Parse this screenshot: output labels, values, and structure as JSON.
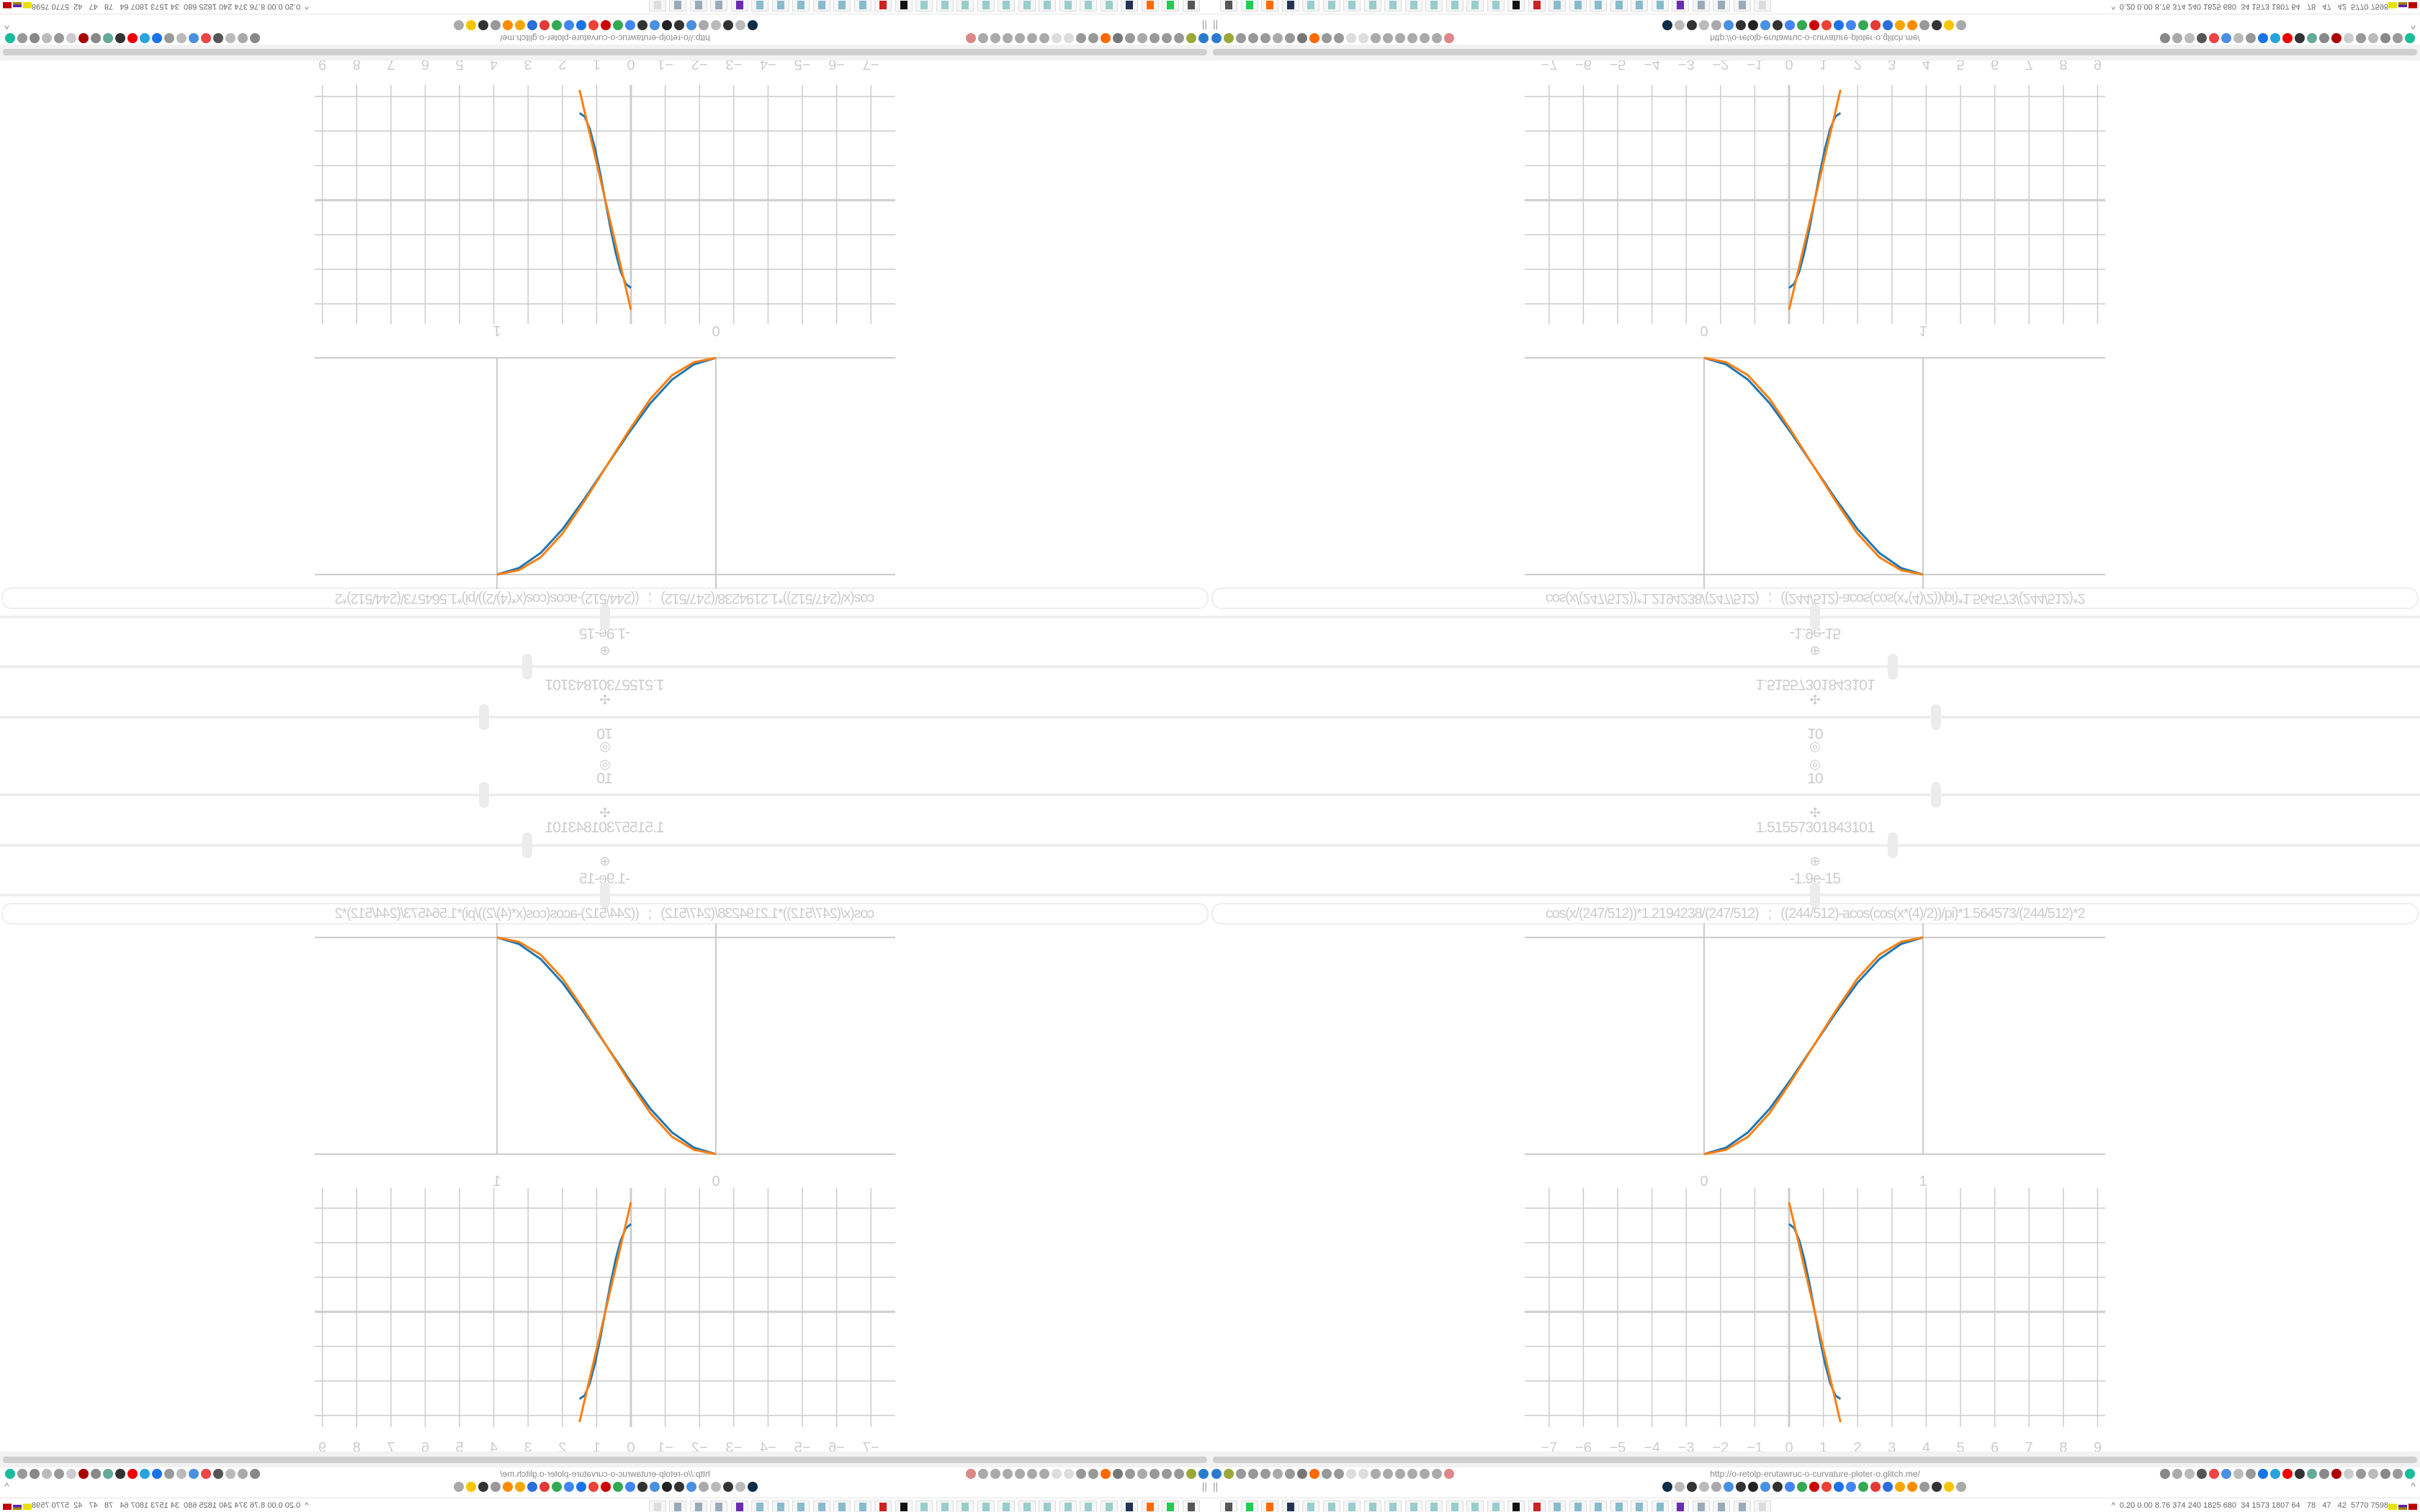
{
  "sliders": [
    {
      "icon": "target-icon",
      "glyph": "◎",
      "value": "10",
      "level": 0.6
    },
    {
      "icon": "move-icon",
      "glyph": "✣",
      "value": "1.51557301843101",
      "level": 0.564
    },
    {
      "icon": "rotate-icon",
      "glyph": "⊕",
      "value": "-1.9e-15",
      "level": 0.5
    }
  ],
  "formula": "cos(x/(247/512))*1.2194238/(247/512)   ;   ((244/512)-acos(cos(x*(4)/2))/pi)*1.564573/(244/512)*2",
  "colors": {
    "series_a": "#1f77b4",
    "series_b": "#ff7f0e",
    "grid": "#cccccc",
    "text": "#cccccc"
  },
  "chart_data": [
    {
      "type": "line",
      "xlim": [
        0,
        1
      ],
      "ylim": [
        0,
        1
      ],
      "tick_labels": [
        "0",
        "1"
      ],
      "grid": true,
      "series": [
        {
          "color": "#1f77b4",
          "x": [
            0,
            0.1,
            0.2,
            0.3,
            0.4,
            0.5,
            0.6,
            0.7,
            0.8,
            0.9,
            1
          ],
          "y": [
            0,
            0.03,
            0.1,
            0.21,
            0.35,
            0.5,
            0.65,
            0.79,
            0.9,
            0.97,
            1
          ]
        },
        {
          "color": "#ff7f0e",
          "x": [
            0,
            0.1,
            0.2,
            0.3,
            0.4,
            0.5,
            0.6,
            0.7,
            0.8,
            0.9,
            1
          ],
          "y": [
            0,
            0.02,
            0.08,
            0.19,
            0.34,
            0.5,
            0.66,
            0.81,
            0.92,
            0.98,
            1
          ]
        }
      ]
    },
    {
      "type": "line",
      "xlim": [
        -7,
        9
      ],
      "ylim": [
        -3,
        3
      ],
      "tick_labels": [
        "−7",
        "−6",
        "−5",
        "−4",
        "−3",
        "−2",
        "−1",
        "0",
        "1",
        "2",
        "3",
        "4",
        "5",
        "6",
        "7",
        "8",
        "9"
      ],
      "grid": true,
      "series": [
        {
          "color": "#1f77b4",
          "x": [
            0,
            0.15,
            0.3,
            0.45,
            0.6,
            0.75,
            0.9,
            1.05,
            1.2,
            1.35,
            1.5
          ],
          "y": [
            2.54,
            2.42,
            2.06,
            1.5,
            0.79,
            0,
            -0.79,
            -1.5,
            -2.06,
            -2.42,
            -2.52
          ]
        },
        {
          "color": "#ff7f0e",
          "x": [
            0,
            1.5
          ],
          "y": [
            3.17,
            -3.19
          ]
        }
      ]
    }
  ],
  "browser": {
    "url": "http://o-retolp-erutawruc-o-curvature-ploter-o.glitch.me/",
    "toolbar_left": [
      "#2a7bd0",
      "#9aa83a",
      "#999",
      "#999",
      "#999",
      "#aaa",
      "#999",
      "#777",
      "#ff6a00",
      "#999",
      "#999",
      "#ddd",
      "#ddd",
      "#aaa",
      "#aaa",
      "#aaa",
      "#aaa",
      "#aaa",
      "#aaa",
      "#d88"
    ],
    "toolbar_right": [
      "#888",
      "#aaa",
      "#bbb",
      "#555",
      "#e44",
      "#4a90e2",
      "#bbb",
      "#999",
      "#1a73e8",
      "#29a3e0",
      "#e00",
      "#333",
      "#6a9",
      "#888",
      "#a00",
      "#ccc",
      "#999",
      "#bbb",
      "#888",
      "#999",
      "#1abc9c"
    ],
    "bookmarks": [
      "#0c2d48",
      "#bbb",
      "#333",
      "#bbb",
      "#aaa",
      "#4a90e2",
      "#333",
      "#222",
      "#4a90e2",
      "#333",
      "#4285f4",
      "#34a853",
      "#c00",
      "#ea4335",
      "#1a73e8",
      "#4285f4",
      "#34a853",
      "#e53935",
      "#2a6fdb",
      "#f7a800",
      "#ff8c00",
      "#999",
      "#333",
      "#f7c600",
      "#aaa"
    ],
    "taskbar": [
      "#555",
      "#2c5",
      "#ff6a00",
      "#235",
      "#9cc",
      "#9cc",
      "#9cc",
      "#9cc",
      "#9cc",
      "#9cc",
      "#9cc",
      "#9cc",
      "#9cc",
      "#9cc",
      "#111",
      "#c22",
      "#8bc",
      "#8bc",
      "#8bc",
      "#8bc",
      "#8bc",
      "#8bc",
      "#6a2bb5",
      "#9ab",
      "#9ab",
      "#9ab",
      "#ddd"
    ],
    "tray_text": "0.20 0.00 8.76 374 240 1825 680  34 1573 1807 64   78   47   42  5770 7598",
    "tray_chevron": "^",
    "sidebar_chevron": "^"
  }
}
